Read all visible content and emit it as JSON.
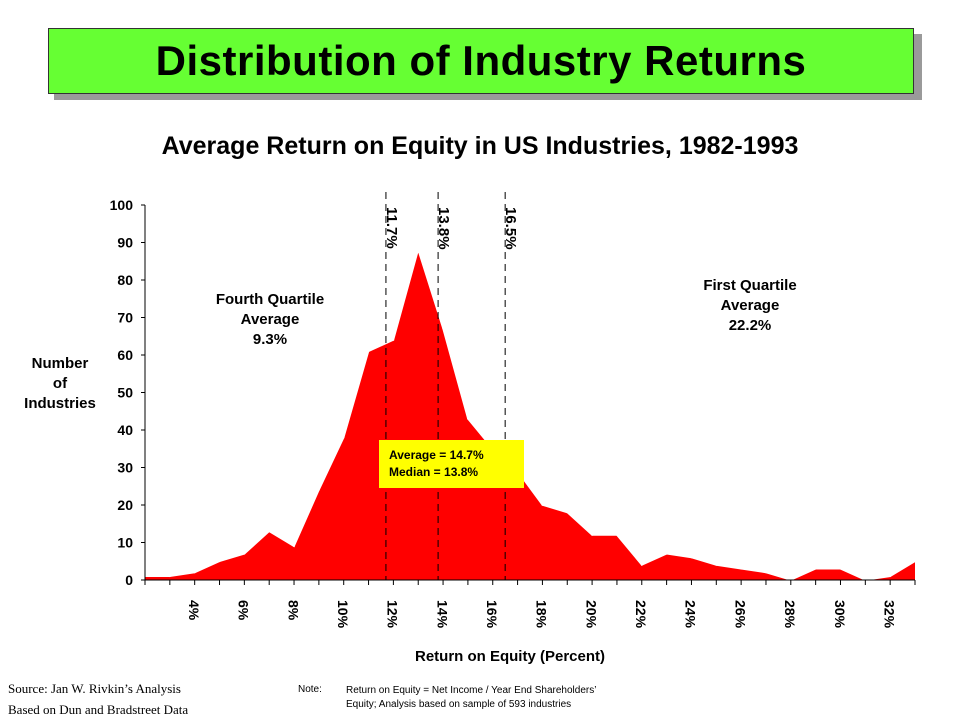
{
  "header": {
    "title": "Distribution of Industry Returns"
  },
  "chart_data": {
    "type": "area",
    "title": "Average Return on Equity in US Industries, 1982-1993",
    "xlabel": "Return on Equity (Percent)",
    "ylabel": "Number of Industries",
    "ylabel_lines": [
      "Number",
      "of",
      "Industries"
    ],
    "ylim": [
      0,
      100
    ],
    "xlim": [
      2,
      33
    ],
    "yticks": [
      "0",
      "10",
      "20",
      "30",
      "40",
      "50",
      "60",
      "70",
      "80",
      "90",
      "100"
    ],
    "xticks": [
      {
        "x": 4,
        "label": "4%"
      },
      {
        "x": 6,
        "label": "6%"
      },
      {
        "x": 8,
        "label": "8%"
      },
      {
        "x": 10,
        "label": "10%"
      },
      {
        "x": 12,
        "label": "12%"
      },
      {
        "x": 14,
        "label": "14%"
      },
      {
        "x": 16,
        "label": "16%"
      },
      {
        "x": 18,
        "label": "18%"
      },
      {
        "x": 20,
        "label": "20%"
      },
      {
        "x": 22,
        "label": "22%"
      },
      {
        "x": 24,
        "label": "24%"
      },
      {
        "x": 26,
        "label": "26%"
      },
      {
        "x": 28,
        "label": "28%"
      },
      {
        "x": 30,
        "label": "30%"
      },
      {
        "x": 32,
        "label": "32%"
      }
    ],
    "x": [
      2,
      3,
      4,
      5,
      6,
      7,
      8,
      9,
      10,
      11,
      12,
      13,
      14,
      15,
      16,
      17,
      18,
      19,
      20,
      21,
      22,
      23,
      24,
      25,
      26,
      27,
      28,
      29,
      30,
      31,
      32,
      33
    ],
    "values": [
      1,
      1,
      2,
      5,
      7,
      13,
      9,
      24,
      38,
      61,
      64,
      88,
      67,
      43,
      35,
      29,
      20,
      18,
      12,
      12,
      4,
      7,
      6,
      4,
      3,
      2,
      0,
      3,
      3,
      0,
      1,
      5
    ],
    "fill_color": "#ff0000",
    "grid": false,
    "reference_lines": [
      {
        "x": 11.7,
        "label": "11.7%"
      },
      {
        "x": 13.8,
        "label": "13.8%"
      },
      {
        "x": 16.5,
        "label": "16.5%"
      }
    ],
    "annotations": {
      "fourth_quartile": [
        "Fourth Quartile",
        "Average",
        "9.3%"
      ],
      "first_quartile": [
        "First Quartile",
        "Average",
        "22.2%"
      ],
      "stats": [
        "Average = 14.7%",
        "Median = 13.8%"
      ],
      "stats_box_color": "#ffff00"
    }
  },
  "footer": {
    "source_lines": [
      "Source:  Jan W. Rivkin’s Analysis",
      "Based on Dun and Bradstreet Data"
    ],
    "note_label": "Note:",
    "note_lines": [
      "Return on Equity = Net Income / Year End Shareholders’",
      "Equity; Analysis based on sample of 593 industries"
    ]
  }
}
